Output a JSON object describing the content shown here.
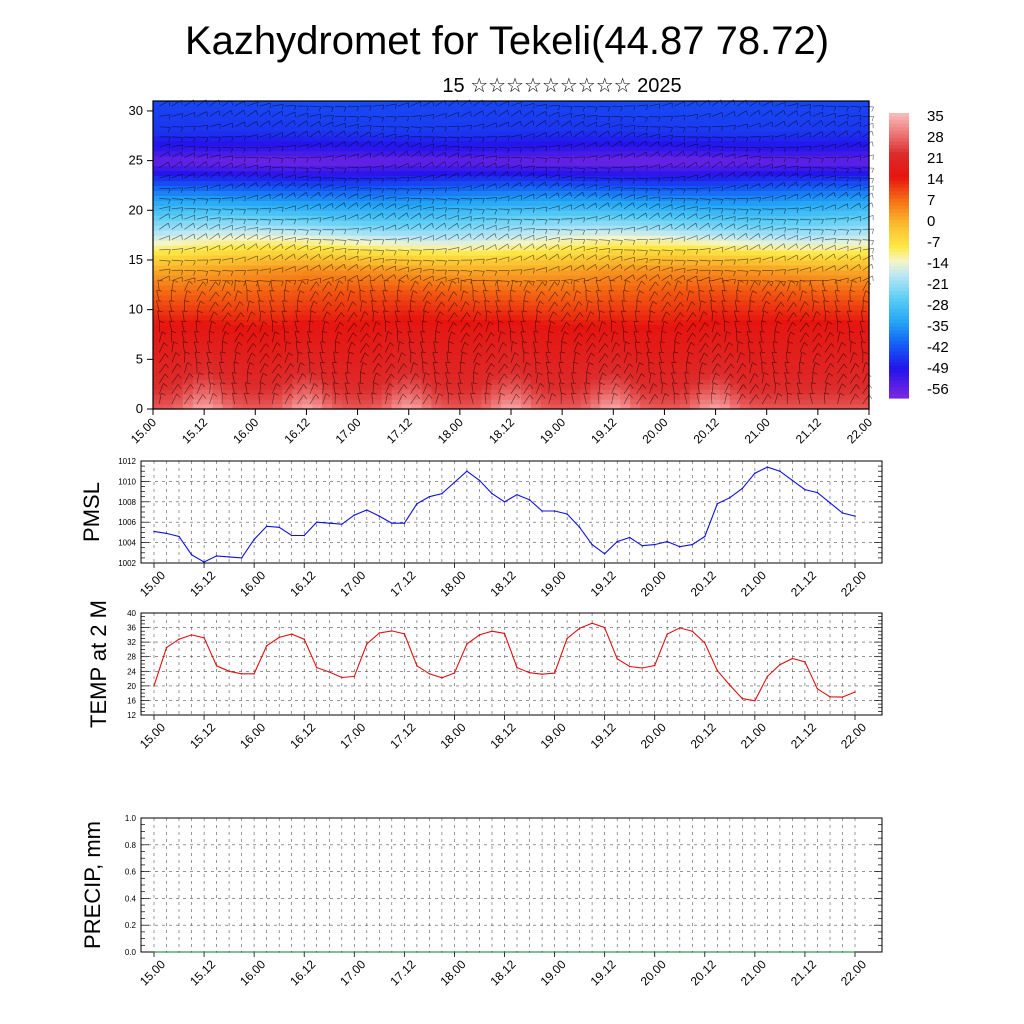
{
  "title": "Kazhydromet for Tekeli(44.87 78.72)",
  "subtitle": "15 ☆☆☆☆☆☆☆☆☆ 2025",
  "time_ticks": [
    "15.00",
    "15.12",
    "16.00",
    "16.12",
    "17.00",
    "17.12",
    "18.00",
    "18.12",
    "19.00",
    "19.12",
    "20.00",
    "20.12",
    "21.00",
    "21.12",
    "22.00"
  ],
  "chart_data": [
    {
      "type": "heatmap",
      "title": "",
      "xlabel": "",
      "ylabel": "",
      "x_tick_labels": [
        "15.00",
        "15.12",
        "16.00",
        "16.12",
        "17.00",
        "17.12",
        "18.00",
        "18.12",
        "19.00",
        "19.12",
        "20.00",
        "20.12",
        "21.00",
        "21.12",
        "22.00"
      ],
      "y_ticks": [
        0,
        5,
        10,
        15,
        20,
        25,
        30
      ],
      "ylim": [
        0,
        31
      ],
      "colorbar_labels": [
        "35",
        "28",
        "21",
        "14",
        "7",
        "0",
        "-7",
        "-14",
        "-21",
        "-28",
        "-35",
        "-42",
        "-49",
        "-56"
      ],
      "colorbar_range": [
        -60,
        38
      ],
      "vertical_profile_temperature": {
        "height": [
          0,
          2,
          4,
          6,
          8,
          10,
          12,
          14,
          15,
          16,
          17,
          18,
          19,
          20,
          21,
          22,
          23,
          24,
          25,
          26,
          28,
          31
        ],
        "value": [
          28,
          24,
          21,
          19,
          17,
          13,
          9,
          3,
          -2,
          -8,
          -14,
          -20,
          -25,
          -30,
          -35,
          -40,
          -46,
          -52,
          -58,
          -52,
          -46,
          -44
        ]
      },
      "surface_peaks_at": [
        "15.12",
        "16.12",
        "17.12",
        "18.12",
        "19.12",
        "20.12"
      ],
      "overlay": "wind barbs"
    },
    {
      "type": "line",
      "ylabel": "PMSL",
      "ylim": [
        1002,
        1012
      ],
      "y_ticks": [
        1002,
        1004,
        1006,
        1008,
        1010,
        1012
      ],
      "x_tick_labels": [
        "15.00",
        "15.12",
        "16.00",
        "16.12",
        "17.00",
        "17.12",
        "18.00",
        "18.12",
        "19.00",
        "19.12",
        "20.00",
        "20.12",
        "21.00",
        "21.12",
        "22.00"
      ],
      "series": [
        {
          "color": "#1010e0",
          "values": [
            1005.1,
            1004.9,
            1004.6,
            1002.8,
            1002.1,
            1002.7,
            1002.6,
            1002.5,
            1004.3,
            1005.6,
            1005.5,
            1004.7,
            1004.7,
            1006.0,
            1005.9,
            1005.8,
            1006.7,
            1007.2,
            1006.6,
            1005.9,
            1005.9,
            1007.8,
            1008.5,
            1008.8,
            1009.9,
            1011.0,
            1010.1,
            1008.8,
            1008.0,
            1008.7,
            1008.2,
            1007.1,
            1007.1,
            1006.8,
            1005.5,
            1003.8,
            1002.9,
            1004.1,
            1004.5,
            1003.7,
            1003.8,
            1004.1,
            1003.6,
            1003.8,
            1004.6,
            1007.8,
            1008.4,
            1009.3,
            1010.8,
            1011.4,
            1011.0,
            1010.1,
            1009.2,
            1008.9,
            1007.9,
            1006.9,
            1006.6
          ]
        }
      ]
    },
    {
      "type": "line",
      "ylabel": "TEMP at 2 M",
      "ylim": [
        12,
        40
      ],
      "y_ticks": [
        12,
        16,
        20,
        24,
        28,
        32,
        36,
        40
      ],
      "x_tick_labels": [
        "15.00",
        "15.12",
        "16.00",
        "16.12",
        "17.00",
        "17.12",
        "18.00",
        "18.12",
        "19.00",
        "19.12",
        "20.00",
        "20.12",
        "21.00",
        "21.12",
        "22.00"
      ],
      "series": [
        {
          "color": "#e01010",
          "values": [
            20.0,
            30.5,
            32.8,
            34.0,
            33.2,
            25.5,
            24.0,
            23.3,
            23.3,
            31.0,
            33.3,
            34.2,
            32.8,
            25.0,
            23.8,
            22.3,
            22.6,
            31.5,
            34.5,
            35.1,
            34.3,
            25.5,
            23.3,
            22.2,
            23.5,
            31.5,
            34.0,
            35.0,
            34.4,
            25.0,
            23.6,
            23.2,
            23.5,
            33.0,
            35.8,
            37.2,
            36.0,
            27.4,
            25.3,
            24.9,
            25.6,
            34.2,
            35.9,
            35.0,
            31.8,
            24.2,
            20.2,
            16.5,
            15.9,
            22.6,
            25.8,
            27.5,
            26.6,
            19.2,
            17.0,
            16.9,
            18.3
          ]
        }
      ]
    },
    {
      "type": "line",
      "ylabel": "PRECIP, mm",
      "ylim": [
        0,
        1
      ],
      "y_ticks": [
        0.0,
        0.2,
        0.4,
        0.6,
        0.8,
        1.0
      ],
      "y_tick_labels": [
        "0.0",
        "0.2",
        "0.4",
        "0.6",
        "0.8",
        "1.0"
      ],
      "x_tick_labels": [
        "15.00",
        "15.12",
        "16.00",
        "16.12",
        "17.00",
        "17.12",
        "18.00",
        "18.12",
        "19.00",
        "19.12",
        "20.00",
        "20.12",
        "21.00",
        "21.12",
        "22.00"
      ],
      "series": [
        {
          "color": "#0a7a30",
          "values": [
            0,
            0,
            0,
            0,
            0,
            0,
            0,
            0,
            0,
            0,
            0,
            0,
            0,
            0,
            0,
            0,
            0,
            0,
            0,
            0,
            0,
            0,
            0,
            0,
            0,
            0,
            0,
            0,
            0,
            0,
            0,
            0,
            0,
            0,
            0,
            0,
            0,
            0,
            0,
            0,
            0,
            0,
            0,
            0,
            0,
            0,
            0,
            0,
            0,
            0,
            0,
            0,
            0,
            0,
            0,
            0,
            0
          ]
        }
      ]
    }
  ]
}
